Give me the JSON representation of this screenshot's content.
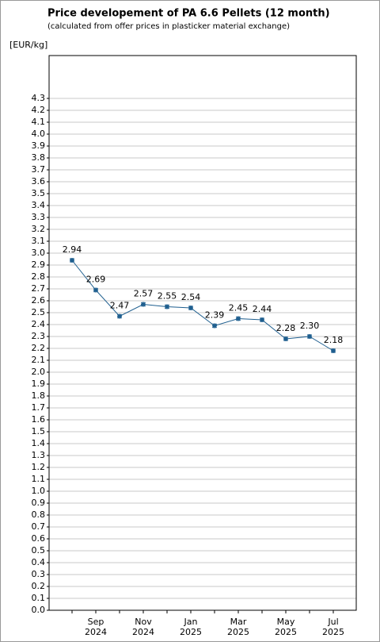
{
  "chart_data": {
    "type": "line",
    "title": "Price developement of PA 6.6 Pellets (12 month)",
    "subtitle": "(calculated from offer prices in plasticker material exchange)",
    "y_label": "[EUR/kg]",
    "categories": [
      null,
      "Sep",
      null,
      "Nov",
      null,
      "Jan",
      null,
      "Mar",
      null,
      "May",
      null,
      "Jul"
    ],
    "category_years": [
      null,
      "2024",
      null,
      "2024",
      null,
      "2025",
      null,
      "2025",
      null,
      "2025",
      null,
      "2025"
    ],
    "series": [
      {
        "color": "#1f5f8f",
        "values": [
          2.94,
          2.69,
          2.47,
          2.57,
          2.55,
          2.54,
          2.39,
          2.45,
          2.44,
          2.28,
          2.3,
          2.18
        ],
        "value_labels": [
          "2.94",
          "2.69",
          "2.47",
          "2.57",
          "2.55",
          "2.54",
          "2.39",
          "2.45",
          "2.44",
          "2.28",
          "2.30",
          "2.18"
        ]
      }
    ],
    "ylim": [
      0,
      4.66
    ],
    "yticks": [
      {
        "value": 0,
        "label": "0.0"
      },
      0.1,
      0.2,
      0.3,
      0.4,
      0.5,
      0.6,
      0.7,
      0.8,
      0.9,
      {
        "value": 1,
        "label": "1.0"
      },
      1.1,
      1.2,
      1.3,
      1.4,
      1.5,
      1.6,
      1.7,
      1.8,
      1.9,
      {
        "value": 2,
        "label": "2.0"
      },
      2.1,
      2.2,
      2.3,
      2.4,
      2.5,
      2.6,
      2.7,
      2.8,
      2.9,
      {
        "value": 3,
        "label": "3.0"
      },
      3.1,
      3.2,
      3.3,
      3.4,
      3.5,
      3.6,
      3.7,
      3.8,
      3.9,
      {
        "value": 4,
        "label": "4.0"
      },
      4.1,
      4.2,
      4.3
    ],
    "grid": true
  }
}
